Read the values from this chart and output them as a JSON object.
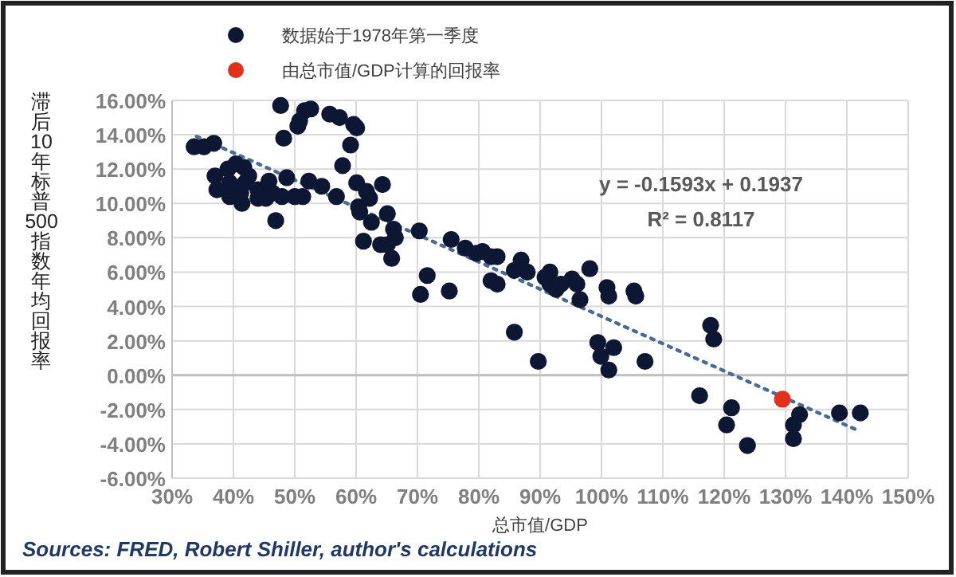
{
  "chart_data": {
    "type": "scatter",
    "xlabel": "总市值/GDP",
    "ylabel": "滞后10年标普500指数年均回报率",
    "xlim": [
      30,
      150
    ],
    "ylim": [
      -6,
      16
    ],
    "xticks": [
      {
        "value": 30,
        "label": "30%"
      },
      {
        "value": 40,
        "label": "40%"
      },
      {
        "value": 50,
        "label": "50%"
      },
      {
        "value": 60,
        "label": "60%"
      },
      {
        "value": 70,
        "label": "70%"
      },
      {
        "value": 80,
        "label": "80%"
      },
      {
        "value": 90,
        "label": "90%"
      },
      {
        "value": 100,
        "label": "100%"
      },
      {
        "value": 110,
        "label": "110%"
      },
      {
        "value": 120,
        "label": "120%"
      },
      {
        "value": 130,
        "label": "130%"
      },
      {
        "value": 140,
        "label": "140%"
      },
      {
        "value": 150,
        "label": "150%"
      }
    ],
    "yticks": [
      {
        "value": -6,
        "label": "-6.00%"
      },
      {
        "value": -4,
        "label": "-4.00%"
      },
      {
        "value": -2,
        "label": "-2.00%"
      },
      {
        "value": 0,
        "label": "0.00%"
      },
      {
        "value": 2,
        "label": "2.00%"
      },
      {
        "value": 4,
        "label": "4.00%"
      },
      {
        "value": 6,
        "label": "6.00%"
      },
      {
        "value": 8,
        "label": "8.00%"
      },
      {
        "value": 10,
        "label": "10.00%"
      },
      {
        "value": 12,
        "label": "12.00%"
      },
      {
        "value": 14,
        "label": "14.00%"
      },
      {
        "value": 16,
        "label": "16.00%"
      }
    ],
    "grid": true,
    "legend": "top",
    "marker": "circle",
    "series": [
      {
        "type": "line",
        "color": "#4a6a96",
        "line_style": "dotted",
        "marker": "none",
        "x": [
          34,
          141.7
        ],
        "values": [
          13.9,
          -3.2
        ]
      },
      {
        "name": "数据始于1978年第一季度",
        "color": "#0d1733",
        "x": [
          33.6,
          35.2,
          36.8,
          37.0,
          37.3,
          39.1,
          39.4,
          39.4,
          40.4,
          41.2,
          41.4,
          41.7,
          41.9,
          42.5,
          44.0,
          44.0,
          45.3,
          45.8,
          46.4,
          46.9,
          47.7,
          47.9,
          48.2,
          48.7,
          50.0,
          50.5,
          50.8,
          51.3,
          51.6,
          52.6,
          52.3,
          54.4,
          55.7,
          56.8,
          57.3,
          57.8,
          59.1,
          59.6,
          60.1,
          60.1,
          60.4,
          60.6,
          61.7,
          62.2,
          62.5,
          64.3,
          65.1,
          66.1,
          66.4,
          61.2,
          64.0,
          65.1,
          65.8,
          70.3,
          75.5,
          77.8,
          79.6,
          71.6,
          70.5,
          75.2,
          80.6,
          82.0,
          83.0,
          82.0,
          83.0,
          85.8,
          86.9,
          87.9,
          85.8,
          89.7,
          90.8,
          91.6,
          91.6,
          92.6,
          93.4,
          95.2,
          96.0,
          96.5,
          98.1,
          99.4,
          99.9,
          101.2,
          102.0,
          100.9,
          101.2,
          105.3,
          105.6,
          107.1,
          117.8,
          118.3,
          116.0,
          121.2,
          120.4,
          123.8,
          131.3,
          131.3,
          132.3,
          138.8,
          142.2
        ],
        "values": [
          13.3,
          13.3,
          13.5,
          11.6,
          10.8,
          12.0,
          11.2,
          10.4,
          12.3,
          10.6,
          10.0,
          12.1,
          11.2,
          11.6,
          10.8,
          10.3,
          10.3,
          11.3,
          10.6,
          9.0,
          15.7,
          10.4,
          13.8,
          11.5,
          10.4,
          14.5,
          14.8,
          10.4,
          15.4,
          15.5,
          11.3,
          11.0,
          15.2,
          10.4,
          15.0,
          12.2,
          13.4,
          14.6,
          14.4,
          11.2,
          9.8,
          9.5,
          10.7,
          10.3,
          8.9,
          11.1,
          9.4,
          8.5,
          8.0,
          7.8,
          7.6,
          7.6,
          6.8,
          8.4,
          7.9,
          7.4,
          7.1,
          5.8,
          4.7,
          4.9,
          7.2,
          6.9,
          6.9,
          5.5,
          5.3,
          6.1,
          6.7,
          6.0,
          2.5,
          0.8,
          5.7,
          6.0,
          5.3,
          5.0,
          5.3,
          5.6,
          5.3,
          4.4,
          6.2,
          1.9,
          1.1,
          0.3,
          1.6,
          5.1,
          4.6,
          4.9,
          4.6,
          0.8,
          2.9,
          2.1,
          -1.2,
          -1.9,
          -2.9,
          -4.1,
          -2.9,
          -3.7,
          -2.3,
          -2.2,
          -2.2
        ]
      },
      {
        "name": "由总市值/GDP计算的回报率",
        "color": "#e0301e",
        "x": [
          129.5
        ],
        "values": [
          -1.4
        ]
      }
    ],
    "annotations": [
      "y = -0.1593x + 0.1937",
      "R² = 0.8117",
      "Sources: FRED, Robert Shiller, author's calculations"
    ]
  }
}
